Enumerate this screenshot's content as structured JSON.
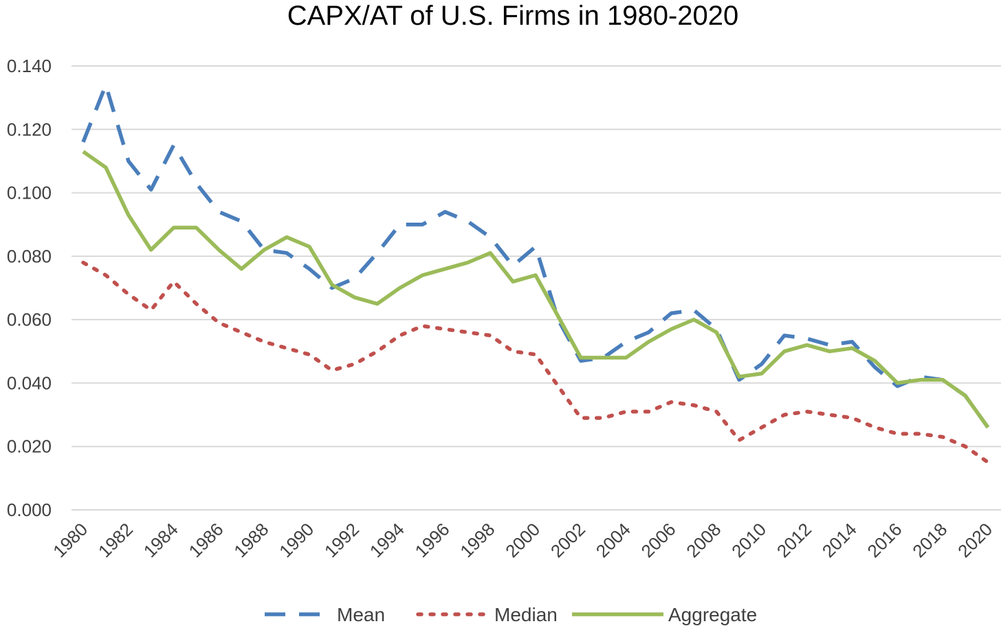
{
  "chart_data": {
    "type": "line",
    "title": "CAPX/AT of U.S. Firms in 1980-2020",
    "xlabel": "",
    "ylabel": "",
    "x": [
      1980,
      1981,
      1982,
      1983,
      1984,
      1985,
      1986,
      1987,
      1988,
      1989,
      1990,
      1991,
      1992,
      1993,
      1994,
      1995,
      1996,
      1997,
      1998,
      1999,
      2000,
      2001,
      2002,
      2003,
      2004,
      2005,
      2006,
      2007,
      2008,
      2009,
      2010,
      2011,
      2012,
      2013,
      2014,
      2015,
      2016,
      2017,
      2018,
      2019,
      2020
    ],
    "x_tick_labels": [
      "1980",
      "1982",
      "1984",
      "1986",
      "1988",
      "1990",
      "1992",
      "1994",
      "1996",
      "1998",
      "2000",
      "2002",
      "2004",
      "2006",
      "2008",
      "2010",
      "2012",
      "2014",
      "2016",
      "2018",
      "2020"
    ],
    "y_tick_labels": [
      "0.000",
      "0.020",
      "0.040",
      "0.060",
      "0.080",
      "0.100",
      "0.120",
      "0.140"
    ],
    "ylim": [
      0,
      0.14
    ],
    "grid": true,
    "legend_position": "bottom",
    "series": [
      {
        "name": "Mean",
        "color": "#4a7ebb",
        "style": "dashed",
        "values": [
          0.116,
          0.134,
          0.11,
          0.101,
          0.115,
          0.103,
          0.094,
          0.091,
          0.082,
          0.081,
          0.076,
          0.07,
          0.073,
          0.081,
          0.09,
          0.09,
          0.094,
          0.091,
          0.086,
          0.077,
          0.083,
          0.06,
          0.047,
          0.048,
          0.053,
          0.056,
          0.062,
          0.063,
          0.057,
          0.041,
          0.046,
          0.055,
          0.054,
          0.052,
          0.053,
          0.045,
          0.039,
          0.042,
          0.041,
          0.036,
          0.026
        ]
      },
      {
        "name": "Median",
        "color": "#c0504d",
        "style": "dotted",
        "values": [
          0.078,
          0.074,
          0.068,
          0.063,
          0.072,
          0.065,
          0.059,
          0.056,
          0.053,
          0.051,
          0.049,
          0.044,
          0.046,
          0.05,
          0.055,
          0.058,
          0.057,
          0.056,
          0.055,
          0.05,
          0.049,
          0.039,
          0.029,
          0.029,
          0.031,
          0.031,
          0.034,
          0.033,
          0.031,
          0.022,
          0.026,
          0.03,
          0.031,
          0.03,
          0.029,
          0.026,
          0.024,
          0.024,
          0.023,
          0.02,
          0.015
        ]
      },
      {
        "name": "Aggregate",
        "color": "#9bbb59",
        "style": "solid",
        "values": [
          0.113,
          0.108,
          0.093,
          0.082,
          0.089,
          0.089,
          0.082,
          0.076,
          0.082,
          0.086,
          0.083,
          0.071,
          0.067,
          0.065,
          0.07,
          0.074,
          0.076,
          0.078,
          0.081,
          0.072,
          0.074,
          0.061,
          0.048,
          0.048,
          0.048,
          0.053,
          0.057,
          0.06,
          0.056,
          0.042,
          0.043,
          0.05,
          0.052,
          0.05,
          0.051,
          0.047,
          0.04,
          0.041,
          0.041,
          0.036,
          0.026
        ]
      }
    ]
  }
}
